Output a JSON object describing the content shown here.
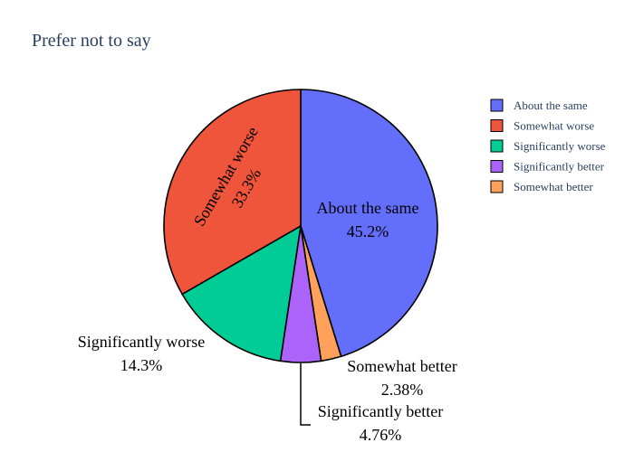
{
  "chart_data": {
    "type": "pie",
    "title": "Prefer not to say",
    "legend_position": "right",
    "slices": [
      {
        "label": "About the same",
        "value": 45.2,
        "percent_text": "45.2%",
        "color": "#636efa"
      },
      {
        "label": "Somewhat better",
        "value": 2.38,
        "percent_text": "2.38%",
        "color": "#ffa15a"
      },
      {
        "label": "Significantly better",
        "value": 4.76,
        "percent_text": "4.76%",
        "color": "#ab63fa"
      },
      {
        "label": "Significantly worse",
        "value": 14.3,
        "percent_text": "14.3%",
        "color": "#00cc96"
      },
      {
        "label": "Somewhat worse",
        "value": 33.3,
        "percent_text": "33.3%",
        "color": "#ef553b"
      }
    ],
    "legend": [
      {
        "label": "About the same",
        "color": "#636efa"
      },
      {
        "label": "Somewhat worse",
        "color": "#ef553b"
      },
      {
        "label": "Significantly worse",
        "color": "#00cc96"
      },
      {
        "label": "Significantly better",
        "color": "#ab63fa"
      },
      {
        "label": "Somewhat better",
        "color": "#ffa15a"
      }
    ]
  }
}
